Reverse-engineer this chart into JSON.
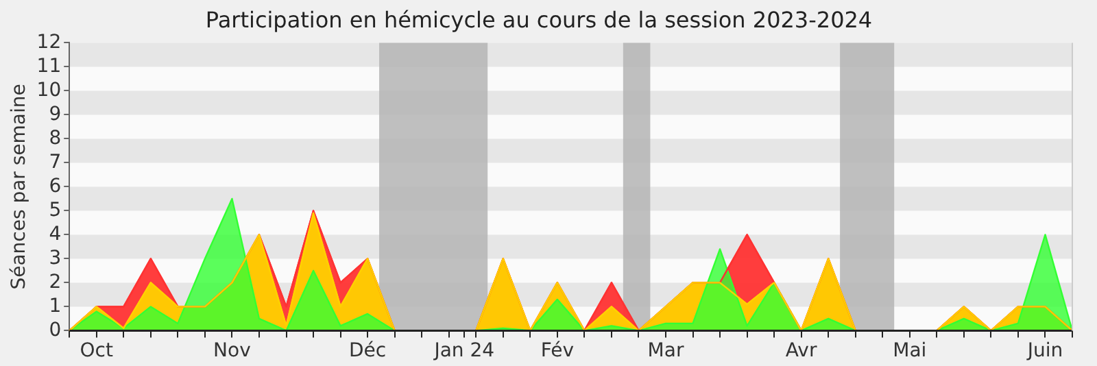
{
  "chart_data": {
    "type": "area",
    "title": "Participation en hémicycle au cours de la session 2023-2024",
    "ylabel": "Séances par semaine",
    "x": [
      "2023-09-29",
      "2023-10-06",
      "2023-10-13",
      "2023-10-20",
      "2023-10-27",
      "2023-11-03",
      "2023-11-10",
      "2023-11-17",
      "2023-11-24",
      "2023-12-01",
      "2023-12-08",
      "2023-12-15",
      "2023-12-22",
      "2023-12-29",
      "2024-01-05",
      "2024-01-12",
      "2024-01-19",
      "2024-01-26",
      "2024-02-02",
      "2024-02-09",
      "2024-02-16",
      "2024-02-23",
      "2024-03-01",
      "2024-03-08",
      "2024-03-15",
      "2024-03-22",
      "2024-03-29",
      "2024-04-05",
      "2024-04-12",
      "2024-04-19",
      "2024-04-26",
      "2024-05-03",
      "2024-05-10",
      "2024-05-17",
      "2024-05-24",
      "2024-05-31",
      "2024-06-07",
      "2024-06-14"
    ],
    "series": [
      {
        "color": "#ff3333",
        "values": [
          0,
          1,
          1,
          3,
          1,
          1,
          2,
          4,
          1,
          5,
          2,
          3,
          0,
          0,
          0,
          0,
          3,
          0,
          2,
          0,
          2,
          0,
          1,
          2,
          2,
          4,
          2,
          0,
          3,
          0,
          0,
          0,
          0,
          1,
          0,
          1,
          1,
          0
        ]
      },
      {
        "color": "#ffd000",
        "values": [
          0,
          1,
          0.1,
          2,
          1,
          1,
          2,
          4,
          0.2,
          4.9,
          1,
          3,
          0,
          0,
          0,
          0,
          3,
          0,
          2,
          0,
          1,
          0,
          1,
          2,
          2,
          1.1,
          2,
          0,
          3,
          0,
          0,
          0,
          0,
          1,
          0,
          1,
          1,
          0
        ]
      },
      {
        "color": "#33ff33",
        "values": [
          0,
          0.8,
          0.1,
          1,
          0.3,
          3,
          5.5,
          0.5,
          0,
          2.5,
          0.2,
          0.7,
          0,
          0,
          0,
          0,
          0.1,
          0,
          1.3,
          0,
          0.2,
          0,
          0.3,
          0.3,
          3.4,
          0.2,
          2,
          0,
          0.5,
          0,
          0,
          0,
          0,
          0.5,
          0,
          0.3,
          4,
          0
        ]
      }
    ],
    "xlim": [
      "2023-09-29",
      "2024-06-14"
    ],
    "xticks": [
      {
        "value": "2023-09-29",
        "label": null
      },
      {
        "value": "2023-10-06",
        "label": "Oct"
      },
      {
        "value": "2023-10-13",
        "label": null
      },
      {
        "value": "2023-10-20",
        "label": null
      },
      {
        "value": "2023-10-27",
        "label": null
      },
      {
        "value": "2023-11-03",
        "label": null
      },
      {
        "value": "2023-11-10",
        "label": "Nov"
      },
      {
        "value": "2023-11-17",
        "label": null
      },
      {
        "value": "2023-11-24",
        "label": null
      },
      {
        "value": "2023-12-01",
        "label": null
      },
      {
        "value": "2023-12-08",
        "label": null
      },
      {
        "value": "2023-12-15",
        "label": "Déc"
      },
      {
        "value": "2023-12-22",
        "label": null
      },
      {
        "value": "2023-12-29",
        "label": null
      },
      {
        "value": "2024-01-05",
        "label": null
      },
      {
        "value": "2024-01-09",
        "label": "Jan 24"
      },
      {
        "value": "2024-01-12",
        "label": null
      },
      {
        "value": "2024-01-19",
        "label": null
      },
      {
        "value": "2024-01-26",
        "label": null
      },
      {
        "value": "2024-02-02",
        "label": "Fév"
      },
      {
        "value": "2024-02-09",
        "label": null
      },
      {
        "value": "2024-02-16",
        "label": null
      },
      {
        "value": "2024-02-23",
        "label": null
      },
      {
        "value": "2024-03-01",
        "label": "Mar"
      },
      {
        "value": "2024-03-08",
        "label": null
      },
      {
        "value": "2024-03-15",
        "label": null
      },
      {
        "value": "2024-03-22",
        "label": null
      },
      {
        "value": "2024-03-29",
        "label": null
      },
      {
        "value": "2024-04-05",
        "label": "Avr"
      },
      {
        "value": "2024-04-12",
        "label": null
      },
      {
        "value": "2024-04-19",
        "label": null
      },
      {
        "value": "2024-04-26",
        "label": null
      },
      {
        "value": "2024-05-03",
        "label": "Mai"
      },
      {
        "value": "2024-05-10",
        "label": null
      },
      {
        "value": "2024-05-17",
        "label": null
      },
      {
        "value": "2024-05-24",
        "label": null
      },
      {
        "value": "2024-05-31",
        "label": null
      },
      {
        "value": "2024-06-07",
        "label": "Juin"
      },
      {
        "value": "2024-06-14",
        "label": null
      }
    ],
    "ylim": [
      0,
      12
    ],
    "yticks": [
      0,
      1,
      2,
      3,
      4,
      5,
      6,
      7,
      8,
      9,
      10,
      11,
      12
    ],
    "bands": [
      {
        "axis": "y",
        "from": 1,
        "to": 2,
        "color": "#e6e6e6"
      },
      {
        "axis": "y",
        "from": 3,
        "to": 4,
        "color": "#e6e6e6"
      },
      {
        "axis": "y",
        "from": 5,
        "to": 6,
        "color": "#e6e6e6"
      },
      {
        "axis": "y",
        "from": 7,
        "to": 8,
        "color": "#e6e6e6"
      },
      {
        "axis": "y",
        "from": 9,
        "to": 10,
        "color": "#e6e6e6"
      },
      {
        "axis": "y",
        "from": 11,
        "to": 12,
        "color": "#e6e6e6"
      },
      {
        "axis": "x",
        "from": "2023-12-18",
        "to": "2024-01-15",
        "color": "#b4b4b4"
      },
      {
        "axis": "x",
        "from": "2024-02-19",
        "to": "2024-02-26",
        "color": "#b4b4b4"
      },
      {
        "axis": "x",
        "from": "2024-04-15",
        "to": "2024-04-29",
        "color": "#b4b4b4"
      }
    ]
  }
}
